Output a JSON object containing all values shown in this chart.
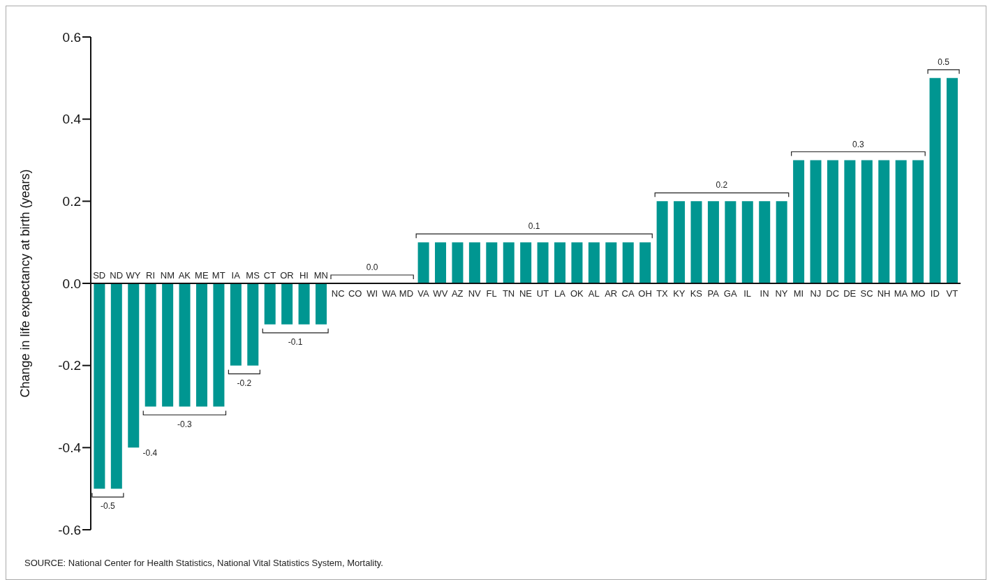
{
  "chart_data": {
    "type": "bar",
    "ylabel": "Change in life expectancy at birth (years)",
    "categories": [
      "SD",
      "ND",
      "WY",
      "RI",
      "NM",
      "AK",
      "ME",
      "MT",
      "IA",
      "MS",
      "CT",
      "OR",
      "HI",
      "MN",
      "NC",
      "CO",
      "WI",
      "WA",
      "MD",
      "VA",
      "WV",
      "AZ",
      "NV",
      "FL",
      "TN",
      "NE",
      "UT",
      "LA",
      "OK",
      "AL",
      "AR",
      "CA",
      "OH",
      "TX",
      "KY",
      "KS",
      "PA",
      "GA",
      "IL",
      "IN",
      "NY",
      "MI",
      "NJ",
      "DC",
      "DE",
      "SC",
      "NH",
      "MA",
      "MO",
      "ID",
      "VT"
    ],
    "values": [
      -0.5,
      -0.5,
      -0.4,
      -0.3,
      -0.3,
      -0.3,
      -0.3,
      -0.3,
      -0.2,
      -0.2,
      -0.1,
      -0.1,
      -0.1,
      -0.1,
      0,
      0,
      0,
      0,
      0,
      0.1,
      0.1,
      0.1,
      0.1,
      0.1,
      0.1,
      0.1,
      0.1,
      0.1,
      0.1,
      0.1,
      0.1,
      0.1,
      0.1,
      0.2,
      0.2,
      0.2,
      0.2,
      0.2,
      0.2,
      0.2,
      0.2,
      0.3,
      0.3,
      0.3,
      0.3,
      0.3,
      0.3,
      0.3,
      0.3,
      0.5,
      0.5
    ],
    "color": "#009691",
    "ylim": [
      -0.6,
      0.6
    ],
    "yticks": [
      {
        "value": -0.6,
        "label": "-0.6"
      },
      {
        "value": -0.4,
        "label": "-0.4"
      },
      {
        "value": -0.2,
        "label": "-0.2"
      },
      {
        "value": 0,
        "label": "0.0"
      },
      {
        "value": 0.2,
        "label": "0.2"
      },
      {
        "value": 0.4,
        "label": "0.4"
      },
      {
        "value": 0.6,
        "label": "0.6"
      }
    ],
    "grid": false,
    "legend": false,
    "annotations": [
      {
        "text": "-0.5",
        "x": "SD",
        "y": -0.5
      },
      {
        "text": "-0.4",
        "x": "WY",
        "y": -0.4
      },
      {
        "text": "-0.3",
        "x": "AK",
        "y": -0.3
      },
      {
        "text": "-0.2",
        "x": "IA",
        "y": -0.2
      },
      {
        "text": "-0.1",
        "x": "OR",
        "y": -0.1
      },
      {
        "text": "0.0",
        "x": "WI",
        "y": 0
      },
      {
        "text": "0.1",
        "x": "NE",
        "y": 0.1
      },
      {
        "text": "0.2",
        "x": "PA",
        "y": 0.2
      },
      {
        "text": "0.3",
        "x": "DE",
        "y": 0.3
      },
      {
        "text": "0.5",
        "x": "ID",
        "y": 0.5
      },
      "SOURCE: National Center for Health Statistics, National Vital Statistics System, Mortality."
    ]
  }
}
